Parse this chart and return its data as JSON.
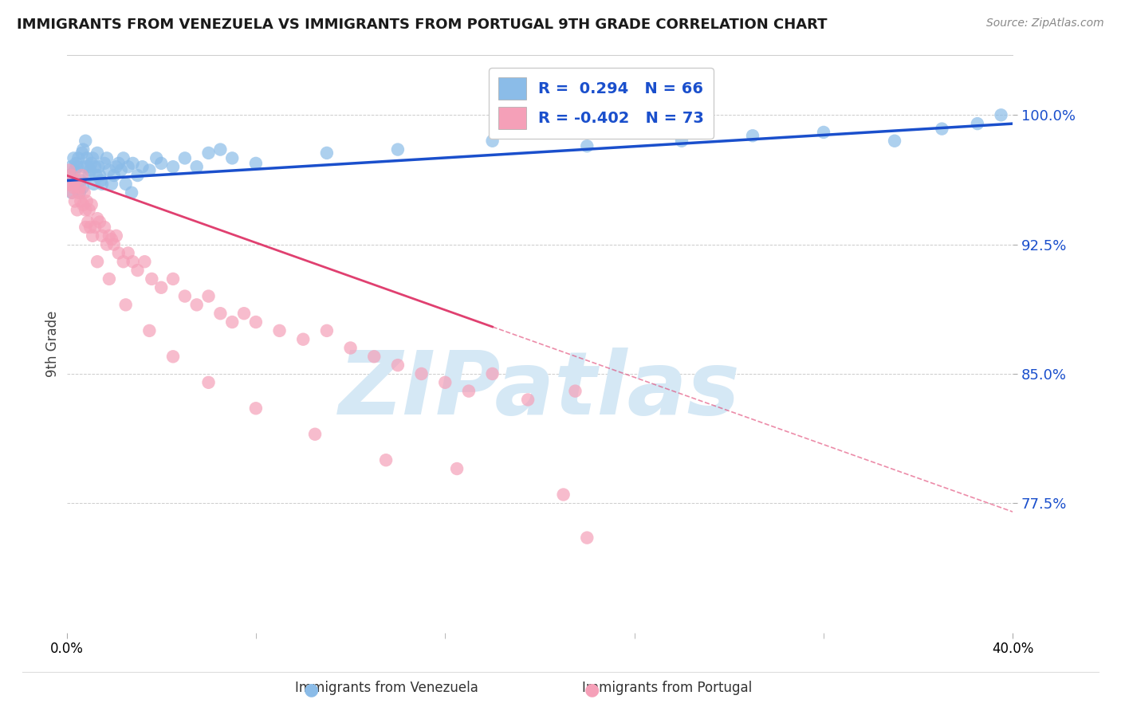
{
  "title": "IMMIGRANTS FROM VENEZUELA VS IMMIGRANTS FROM PORTUGAL 9TH GRADE CORRELATION CHART",
  "source": "Source: ZipAtlas.com",
  "ylabel": "9th Grade",
  "xlim": [
    0.0,
    40.0
  ],
  "ylim": [
    70.0,
    103.5
  ],
  "yticks": [
    77.5,
    85.0,
    92.5,
    100.0
  ],
  "R_venezuela": 0.294,
  "N_venezuela": 66,
  "R_portugal": -0.402,
  "N_portugal": 73,
  "color_venezuela": "#8BBCE8",
  "color_portugal": "#F5A0B8",
  "line_color_venezuela": "#1A4FCC",
  "line_color_portugal": "#E04070",
  "watermark_color": "#D5E8F5",
  "legend_label_venezuela": "Immigrants from Venezuela",
  "legend_label_portugal": "Immigrants from Portugal",
  "venezuela_x": [
    0.15,
    0.2,
    0.25,
    0.3,
    0.35,
    0.4,
    0.45,
    0.5,
    0.55,
    0.6,
    0.65,
    0.7,
    0.75,
    0.8,
    0.85,
    0.9,
    0.95,
    1.0,
    1.05,
    1.1,
    1.15,
    1.2,
    1.25,
    1.3,
    1.35,
    1.4,
    1.5,
    1.6,
    1.7,
    1.8,
    1.9,
    2.0,
    2.1,
    2.2,
    2.3,
    2.4,
    2.5,
    2.6,
    2.8,
    3.0,
    3.2,
    3.5,
    3.8,
    4.0,
    4.5,
    5.0,
    5.5,
    6.0,
    6.5,
    7.0,
    8.0,
    11.0,
    14.0,
    18.0,
    22.0,
    26.0,
    29.0,
    32.0,
    35.0,
    37.0,
    38.5,
    39.5,
    0.22,
    0.68,
    1.45,
    2.75
  ],
  "venezuela_y": [
    96.5,
    97.0,
    96.0,
    97.5,
    96.8,
    97.2,
    97.0,
    97.5,
    95.5,
    96.2,
    97.8,
    98.0,
    97.0,
    98.5,
    97.5,
    97.0,
    96.5,
    96.8,
    97.2,
    97.5,
    96.0,
    97.0,
    96.5,
    97.8,
    97.0,
    96.5,
    96.0,
    97.2,
    97.5,
    96.8,
    96.0,
    96.5,
    97.0,
    97.2,
    96.8,
    97.5,
    96.0,
    97.0,
    97.2,
    96.5,
    97.0,
    96.8,
    97.5,
    97.2,
    97.0,
    97.5,
    97.0,
    97.8,
    98.0,
    97.5,
    97.2,
    97.8,
    98.0,
    98.5,
    98.2,
    98.5,
    98.8,
    99.0,
    98.5,
    99.2,
    99.5,
    100.0,
    95.5,
    95.8,
    96.2,
    95.5
  ],
  "portugal_x": [
    0.1,
    0.15,
    0.2,
    0.25,
    0.3,
    0.35,
    0.4,
    0.45,
    0.5,
    0.55,
    0.6,
    0.65,
    0.7,
    0.75,
    0.8,
    0.85,
    0.9,
    0.95,
    1.0,
    1.05,
    1.1,
    1.2,
    1.3,
    1.4,
    1.5,
    1.6,
    1.7,
    1.8,
    1.9,
    2.0,
    2.1,
    2.2,
    2.4,
    2.6,
    2.8,
    3.0,
    3.3,
    3.6,
    4.0,
    4.5,
    5.0,
    5.5,
    6.0,
    6.5,
    7.0,
    7.5,
    8.0,
    9.0,
    10.0,
    11.0,
    12.0,
    13.0,
    14.0,
    15.0,
    16.0,
    17.0,
    18.0,
    19.5,
    21.5,
    0.3,
    0.8,
    1.3,
    1.8,
    2.5,
    3.5,
    4.5,
    6.0,
    8.0,
    10.5,
    13.5,
    16.5,
    21.0,
    22.0
  ],
  "portugal_y": [
    96.8,
    96.0,
    96.5,
    95.5,
    95.8,
    95.0,
    96.2,
    94.5,
    95.5,
    95.8,
    95.0,
    96.5,
    94.8,
    95.5,
    94.5,
    95.0,
    93.8,
    94.5,
    93.5,
    94.8,
    93.0,
    93.5,
    94.0,
    93.8,
    93.0,
    93.5,
    92.5,
    93.0,
    92.8,
    92.5,
    93.0,
    92.0,
    91.5,
    92.0,
    91.5,
    91.0,
    91.5,
    90.5,
    90.0,
    90.5,
    89.5,
    89.0,
    89.5,
    88.5,
    88.0,
    88.5,
    88.0,
    87.5,
    87.0,
    87.5,
    86.5,
    86.0,
    85.5,
    85.0,
    84.5,
    84.0,
    85.0,
    83.5,
    84.0,
    96.0,
    93.5,
    91.5,
    90.5,
    89.0,
    87.5,
    86.0,
    84.5,
    83.0,
    81.5,
    80.0,
    79.5,
    78.0,
    75.5
  ],
  "ven_trend_x0": 0.0,
  "ven_trend_x1": 40.0,
  "ven_trend_y0": 96.2,
  "ven_trend_y1": 99.5,
  "port_trend_x0": 0.0,
  "port_trend_x1": 40.0,
  "port_trend_y0": 96.5,
  "port_trend_y1": 77.0,
  "port_solid_end_x": 18.0
}
